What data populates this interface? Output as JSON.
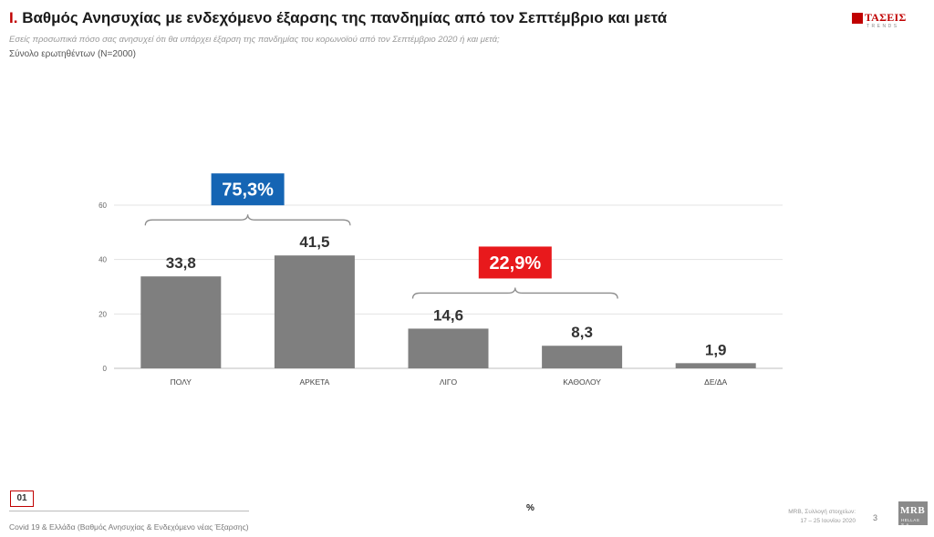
{
  "header": {
    "title_num": "I.",
    "title": "Βαθμός Ανησυχίας με ενδεχόμενο έξαρσης της πανδημίας από τον Σεπτέμβριο και μετά",
    "subtitle": "Εσείς προσωπικά πόσο σας ανησυχεί ότι θα υπάρχει έξαρση της πανδημίας του κορωνοϊού από τον Σεπτέμβριο 2020 ή και μετά;",
    "sample": "Σύνολο ερωτηθέντων (N=2000)"
  },
  "logo": {
    "name": "ΤΑΣΕΙΣ",
    "sub": "TRENDS"
  },
  "chart_data": {
    "type": "bar",
    "categories": [
      "ΠΟΛΥ",
      "ΑΡΚΕΤΑ",
      "ΛΙΓΟ",
      "ΚΑΘΟΛΟΥ",
      "ΔΕ/ΔΑ"
    ],
    "values": [
      33.8,
      41.5,
      14.6,
      8.3,
      1.9
    ],
    "value_labels": [
      "33,8",
      "41,5",
      "14,6",
      "8,3",
      "1,9"
    ],
    "ylim": [
      0,
      60
    ],
    "yticks": [
      0,
      20,
      40,
      60
    ],
    "grid": true,
    "bar_color": "#7f7f7f",
    "groups": [
      {
        "label": "75,3%",
        "from": 0,
        "to": 1,
        "color": "#1565b4"
      },
      {
        "label": "22,9%",
        "from": 2,
        "to": 3,
        "color": "#e8191c"
      }
    ],
    "xlabel": "%"
  },
  "footer": {
    "page_code": "01",
    "text": "Covid 19 & Ελλάδα (Βαθμός Ανησυχίας & Ενδεχόμενο νέας Έξαρσης)",
    "source_line1": "MRB, Συλλογή στοιχείων:",
    "source_line2": "17 – 25 Ιουνίου 2020",
    "slide_number": "3",
    "mrb_name": "MRB",
    "mrb_sub": "HELLAS S.A."
  }
}
